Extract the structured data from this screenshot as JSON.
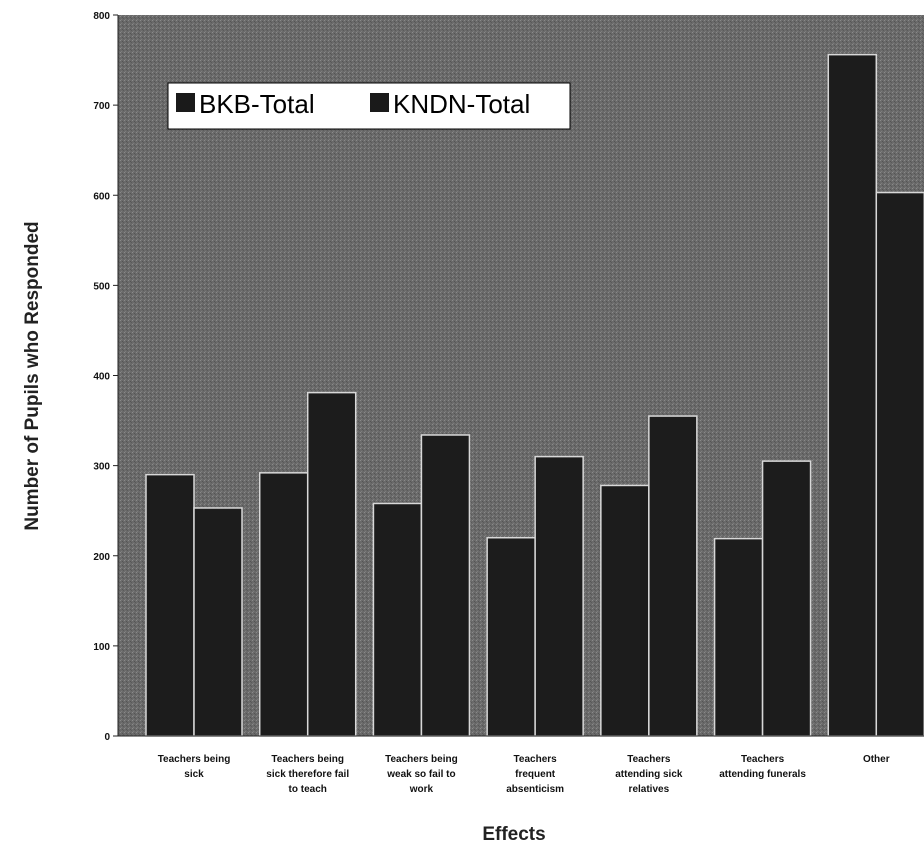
{
  "chart_data": {
    "type": "bar",
    "title": "",
    "xlabel": "Effects",
    "ylabel": "Number of Pupils who Responded",
    "categories": [
      [
        "Teachers being",
        "sick"
      ],
      [
        "Teachers being",
        "sick therefore fail",
        "to teach"
      ],
      [
        "Teachers being",
        "weak so fail to",
        "work"
      ],
      [
        "Teachers",
        "frequent",
        "absenticism"
      ],
      [
        "Teachers",
        "attending sick",
        "relatives"
      ],
      [
        "Teachers",
        "attending funerals"
      ],
      [
        "Other"
      ]
    ],
    "series": [
      {
        "name": "BKB-Total",
        "values": [
          290,
          292,
          258,
          220,
          278,
          219,
          756
        ]
      },
      {
        "name": "KNDN-Total",
        "values": [
          253,
          381,
          334,
          310,
          355,
          305,
          603
        ]
      }
    ],
    "ylim": [
      0,
      800
    ],
    "yticks": [
      0,
      100,
      200,
      300,
      400,
      500,
      600,
      700,
      800
    ],
    "grid": false,
    "legend": {
      "placement": "top-left",
      "entries": [
        "BKB-Total",
        "KNDN-Total"
      ]
    },
    "colors": {
      "plot_background": "#6e6e6e",
      "bar_fill": "#1c1c1c",
      "bar_edge": "#d8d8d8",
      "legend_swatch": "#1a1a1a"
    }
  }
}
